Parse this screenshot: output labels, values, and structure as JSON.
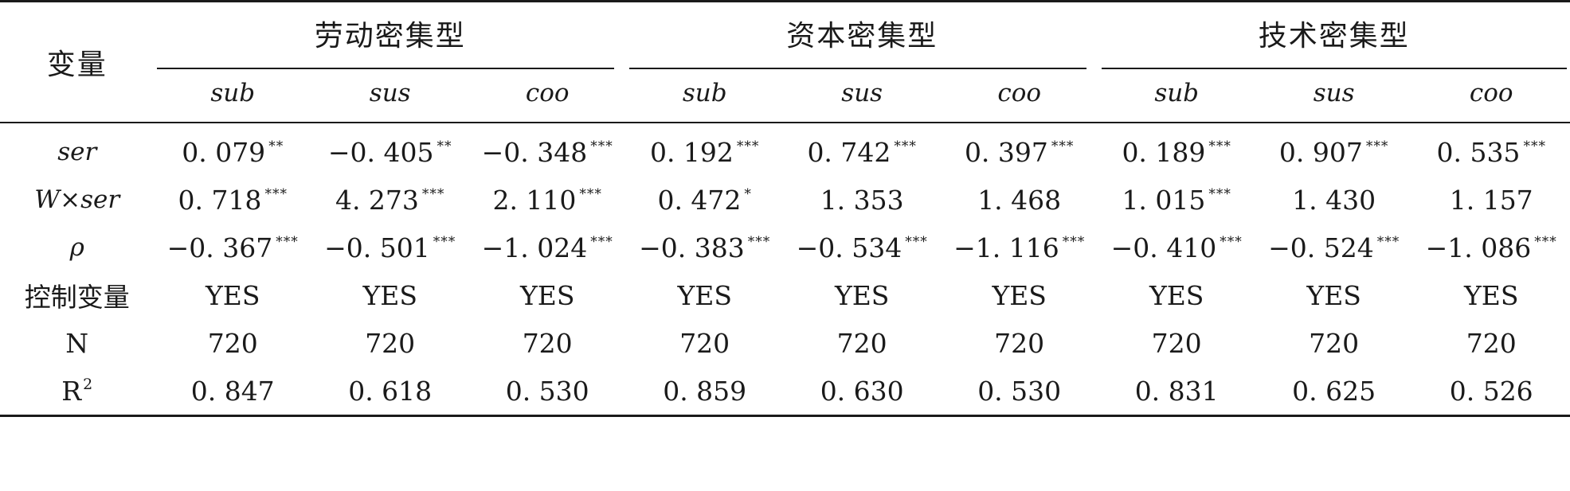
{
  "header": {
    "variable_label": "变量",
    "groups": [
      {
        "label": "劳动密集型",
        "subs": [
          "sub",
          "sus",
          "coo"
        ]
      },
      {
        "label": "资本密集型",
        "subs": [
          "sub",
          "sus",
          "coo"
        ]
      },
      {
        "label": "技术密集型",
        "subs": [
          "sub",
          "sus",
          "coo"
        ]
      }
    ]
  },
  "rows": [
    {
      "label": "ser",
      "cells": [
        {
          "v": "0. 079",
          "s": "**"
        },
        {
          "v": "−0. 405",
          "s": "**"
        },
        {
          "v": "−0. 348",
          "s": "***"
        },
        {
          "v": "0. 192",
          "s": "***"
        },
        {
          "v": "0. 742",
          "s": "***"
        },
        {
          "v": "0. 397",
          "s": "***"
        },
        {
          "v": "0. 189",
          "s": "***"
        },
        {
          "v": "0. 907",
          "s": "***"
        },
        {
          "v": "0. 535",
          "s": "***"
        }
      ]
    },
    {
      "label": "W×ser",
      "cells": [
        {
          "v": "0. 718",
          "s": "***"
        },
        {
          "v": "4. 273",
          "s": "***"
        },
        {
          "v": "2. 110",
          "s": "***"
        },
        {
          "v": "0. 472",
          "s": "*"
        },
        {
          "v": "1. 353",
          "s": ""
        },
        {
          "v": "1. 468",
          "s": ""
        },
        {
          "v": "1. 015",
          "s": "***"
        },
        {
          "v": "1. 430",
          "s": ""
        },
        {
          "v": "1. 157",
          "s": ""
        }
      ]
    },
    {
      "label": "ρ",
      "cells": [
        {
          "v": "−0. 367",
          "s": "***"
        },
        {
          "v": "−0. 501",
          "s": "***"
        },
        {
          "v": "−1. 024",
          "s": "***"
        },
        {
          "v": "−0. 383",
          "s": "***"
        },
        {
          "v": "−0. 534",
          "s": "***"
        },
        {
          "v": "−1. 116",
          "s": "***"
        },
        {
          "v": "−0. 410",
          "s": "***"
        },
        {
          "v": "−0. 524",
          "s": "***"
        },
        {
          "v": "−1. 086",
          "s": "***"
        }
      ]
    },
    {
      "label": "控制变量",
      "cells": [
        {
          "v": "YES",
          "s": ""
        },
        {
          "v": "YES",
          "s": ""
        },
        {
          "v": "YES",
          "s": ""
        },
        {
          "v": "YES",
          "s": ""
        },
        {
          "v": "YES",
          "s": ""
        },
        {
          "v": "YES",
          "s": ""
        },
        {
          "v": "YES",
          "s": ""
        },
        {
          "v": "YES",
          "s": ""
        },
        {
          "v": "YES",
          "s": ""
        }
      ]
    },
    {
      "label": "N",
      "cells": [
        {
          "v": "720",
          "s": ""
        },
        {
          "v": "720",
          "s": ""
        },
        {
          "v": "720",
          "s": ""
        },
        {
          "v": "720",
          "s": ""
        },
        {
          "v": "720",
          "s": ""
        },
        {
          "v": "720",
          "s": ""
        },
        {
          "v": "720",
          "s": ""
        },
        {
          "v": "720",
          "s": ""
        },
        {
          "v": "720",
          "s": ""
        }
      ]
    },
    {
      "label": "R",
      "label_sup": "2",
      "cells": [
        {
          "v": "0. 847",
          "s": ""
        },
        {
          "v": "0. 618",
          "s": ""
        },
        {
          "v": "0. 530",
          "s": ""
        },
        {
          "v": "0. 859",
          "s": ""
        },
        {
          "v": "0. 630",
          "s": ""
        },
        {
          "v": "0. 530",
          "s": ""
        },
        {
          "v": "0. 831",
          "s": ""
        },
        {
          "v": "0. 625",
          "s": ""
        },
        {
          "v": "0. 526",
          "s": ""
        }
      ]
    }
  ]
}
